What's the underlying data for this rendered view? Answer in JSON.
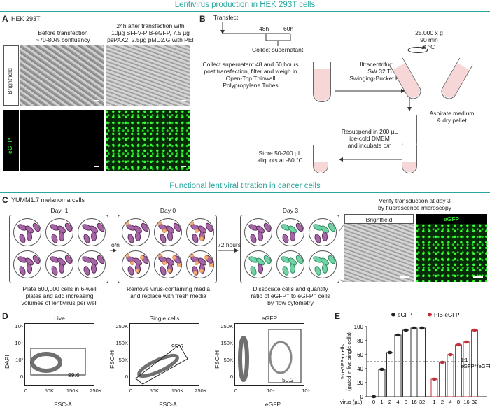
{
  "title_top": "Lentivirus production in HEK 293T cells",
  "title_mid": "Functional lentiviral titration in cancer cells",
  "panelA": {
    "label": "A",
    "cell_line": "HEK 293T",
    "col1": "Before transfection\n~70-80% confluency",
    "col2": "24h after transfection with\n10µg SFFV-PIB-eGFP, 7.5 µg\npsPAX2, 2.5µg pMD2.G with PEI",
    "row1": "Brightfield",
    "row2": "eGFP"
  },
  "panelB": {
    "label": "B",
    "transfect": "Transfect",
    "t48": "48h",
    "t60": "60h",
    "collect": "Collect supernatant",
    "collect_desc": "Collect supernatant 48 and 60 hours\npost transfection, filter and weigh in\nOpen-Top Thinwall\nPolypropylene Tubes",
    "ultra": "Ultracentrifuge in\nSW 32 Ti\nSwinging-Bucket Rotor",
    "spin": "25.000 x g\n90 min\n4 °C",
    "aspirate": "Aspirate medium\n& dry pellet",
    "resuspend": "Resuspend in 200 µL\nice-cold DMEM\nand incubate o/n",
    "store": "Store 50-200 µL\naliquots at -80 °C"
  },
  "panelC": {
    "label": "C",
    "cell_line": "YUMM1.7 melanoma cells",
    "day_m1": "Day -1",
    "day0": "Day 0",
    "day3": "Day 3",
    "on": "o/n",
    "h72": "72 hours",
    "desc1": "Plate 600,000 cells in 6-well\nplates and add increasing\nvolumes of lentivirus per well",
    "desc2": "Remove virus-containing media\nand replace with fresh media",
    "desc3": "Dissociate cells and quantify\nratio of eGFP⁺ to eGFP⁻ cells\nby flow cytometry",
    "verify": "Verify transduction at day 3\nby fluorescence microscopy",
    "bf": "Brightfield",
    "egfp": "eGFP"
  },
  "panelD": {
    "label": "D",
    "plot1": {
      "title": "Live",
      "ylabel": "DAPI",
      "xlabel": "FSC-A",
      "gate": "99.6",
      "yticks": [
        "10⁵",
        "10⁴",
        "10³",
        "0"
      ],
      "xticks": [
        "0",
        "50K",
        "150K",
        "250K"
      ]
    },
    "plot2": {
      "title": "Single cells",
      "ylabel": "FSC-H",
      "xlabel": "FSC-A",
      "gate": "95.6",
      "yticks": [
        "250K",
        "150K",
        "50K",
        "0"
      ],
      "xticks": [
        "0",
        "50K",
        "150K",
        "250K"
      ]
    },
    "plot3": {
      "title": "eGFP",
      "ylabel": "FSC-H",
      "xlabel": "eGFP",
      "gate": "50.2",
      "yticks": [
        "250K",
        "150K",
        "50K",
        "0"
      ],
      "xticks": [
        "0",
        "10⁴",
        "10⁵"
      ]
    }
  },
  "panelE": {
    "label": "E"
  },
  "chart_data": {
    "type": "bar",
    "ylabel": "% eGFP+ cells\n(gated in live single cells)",
    "xlabel": "virus (µL)",
    "ylim": [
      0,
      100
    ],
    "yticks": [
      0,
      20,
      40,
      60,
      80,
      100
    ],
    "reference_line": {
      "y": 50,
      "label": "1:1\neGFP⁺/eGFP⁻"
    },
    "series": [
      {
        "name": "eGFP",
        "color": "#222222",
        "categories": [
          "0",
          "1",
          "2",
          "4",
          "8",
          "16",
          "32"
        ],
        "values": [
          0,
          39,
          63,
          88,
          95,
          98,
          98
        ]
      },
      {
        "name": "PIB-eGFP",
        "color": "#c0303a",
        "categories": [
          "1",
          "2",
          "4",
          "8",
          "16",
          "32"
        ],
        "values": [
          25,
          49,
          60,
          74,
          78,
          95
        ]
      }
    ]
  }
}
